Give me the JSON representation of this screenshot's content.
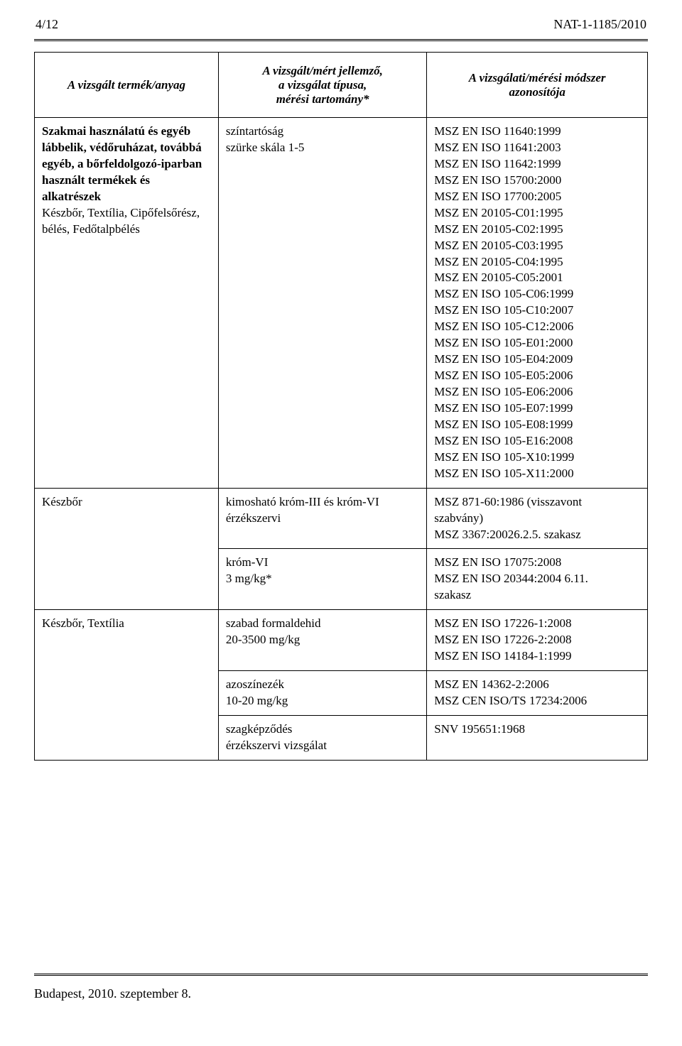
{
  "page": {
    "number": "4/12",
    "doc_id": "NAT-1-1185/2010",
    "footer": "Budapest, 2010. szeptember 8."
  },
  "table": {
    "headers": {
      "col1": "A vizsgált termék/anyag",
      "col2": "A vizsgált/mért jellemző,\na vizsgálat típusa,\nmérési tartomány*",
      "col3": "A vizsgálati/mérési módszer\nazonosítója"
    },
    "rows": [
      {
        "c1_lines": [
          {
            "text": "Szakmai használatú és egyéb",
            "bold": true
          },
          {
            "text": "lábbelik, védőruházat, továbbá",
            "bold": true
          },
          {
            "text": "egyéb, a bőrfeldolgozó-iparban",
            "bold": true
          },
          {
            "text": "használt termékek és alkatrészek",
            "bold": true
          },
          {
            "text": "Készbőr, Textília, Cipőfelsőrész,",
            "bold": false
          },
          {
            "text": "bélés, Fedőtalpbélés",
            "bold": false
          }
        ],
        "c2_lines": [
          "színtartóság",
          "szürke skála 1-5"
        ],
        "c3_lines": [
          "MSZ EN ISO 11640:1999",
          "MSZ EN ISO 11641:2003",
          "MSZ EN ISO 11642:1999",
          "MSZ EN ISO 15700:2000",
          "MSZ EN ISO 17700:2005",
          "MSZ EN 20105-C01:1995",
          "MSZ EN 20105-C02:1995",
          "MSZ EN 20105-C03:1995",
          "MSZ EN 20105-C04:1995",
          "MSZ EN 20105-C05:2001",
          "MSZ EN ISO 105-C06:1999",
          "MSZ EN ISO 105-C10:2007",
          "MSZ EN ISO 105-C12:2006",
          "MSZ EN ISO 105-E01:2000",
          "MSZ EN ISO 105-E04:2009",
          "MSZ EN ISO 105-E05:2006",
          "MSZ EN ISO 105-E06:2006",
          "MSZ EN ISO 105-E07:1999",
          "MSZ EN ISO 105-E08:1999",
          "MSZ EN ISO 105-E16:2008",
          "MSZ EN ISO 105-X10:1999",
          "MSZ EN ISO 105-X11:2000"
        ]
      },
      {
        "c1_lines": [
          {
            "text": "Készbőr",
            "bold": false
          }
        ],
        "c2_lines": [
          "kimosható króm-III és króm-VI",
          "érzékszervi"
        ],
        "c3_lines": [
          "MSZ 871-60:1986 (visszavont",
          "szabvány)",
          "MSZ 3367:20026.2.5. szakasz"
        ]
      },
      {
        "c1_lines": [],
        "c2_lines": [
          "króm-VI",
          "3 mg/kg*"
        ],
        "c3_lines": [
          "MSZ EN ISO 17075:2008",
          "MSZ EN ISO 20344:2004 6.11.",
          "szakasz"
        ]
      },
      {
        "c1_lines": [
          {
            "text": "Készbőr, Textília",
            "bold": false
          }
        ],
        "c2_lines": [
          "szabad formaldehid",
          "20-3500 mg/kg"
        ],
        "c3_lines": [
          "MSZ EN ISO 17226-1:2008",
          "MSZ EN ISO 17226-2:2008",
          "MSZ EN ISO 14184-1:1999"
        ]
      },
      {
        "c1_lines": [],
        "c2_lines": [
          "azoszínezék",
          "10-20 mg/kg"
        ],
        "c3_lines": [
          "MSZ EN 14362-2:2006",
          "MSZ CEN ISO/TS 17234:2006"
        ]
      },
      {
        "c1_lines": [],
        "c2_lines": [
          "szagképződés",
          "érzékszervi vizsgálat"
        ],
        "c3_lines": [
          "SNV 195651:1968"
        ]
      }
    ],
    "row_spans": {
      "row1_c1_rowspan": 2,
      "row3_c1_rowspan": 3
    }
  }
}
